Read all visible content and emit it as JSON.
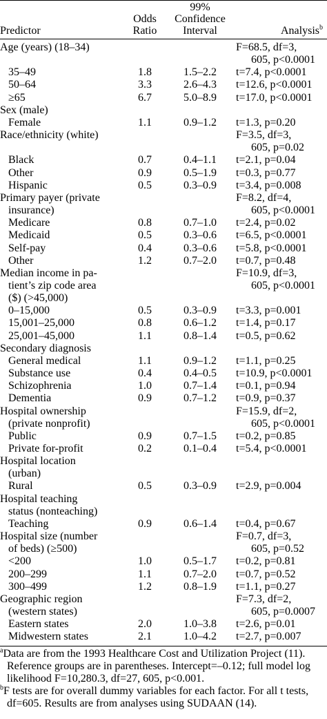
{
  "headers": {
    "predictor": "Predictor",
    "odds_ratio": [
      "Odds",
      "Ratio"
    ],
    "ci": [
      "99%",
      "Confidence",
      "Interval"
    ],
    "analysis": "Analysis",
    "analysis_sup": "b"
  },
  "rows": [
    {
      "pred": [
        "Age (years) (18–34)"
      ],
      "indent": false,
      "or": "",
      "ci": "",
      "an": [
        "F=68.5, df=3,",
        "605, p<0.0001"
      ]
    },
    {
      "pred": [
        "35–49"
      ],
      "indent": true,
      "or": "1.8",
      "ci": "1.5–2.2",
      "an": [
        "t=7.4, p<0.0001"
      ]
    },
    {
      "pred": [
        "50–64"
      ],
      "indent": true,
      "or": "3.3",
      "ci": "2.6–4.3",
      "an": [
        "t=12.6, p<0.0001"
      ]
    },
    {
      "pred": [
        "≥65"
      ],
      "indent": true,
      "or": "6.7",
      "ci": "5.0–8.9",
      "an": [
        "t=17.0, p<0.0001"
      ]
    },
    {
      "pred": [
        "Sex (male)"
      ],
      "indent": false,
      "or": "",
      "ci": "",
      "an": [
        ""
      ]
    },
    {
      "pred": [
        "Female"
      ],
      "indent": true,
      "or": "1.1",
      "ci": "0.9–1.2",
      "an": [
        "t=1.3, p=0.20"
      ]
    },
    {
      "pred": [
        "Race/ethnicity (white)"
      ],
      "indent": false,
      "or": "",
      "ci": "",
      "an": [
        "F=3.5, df=3,",
        "605, p=0.02"
      ]
    },
    {
      "pred": [
        "Black"
      ],
      "indent": true,
      "or": "0.7",
      "ci": "0.4–1.1",
      "an": [
        "t=2.1, p=0.04"
      ]
    },
    {
      "pred": [
        "Other"
      ],
      "indent": true,
      "or": "0.9",
      "ci": "0.5–1.9",
      "an": [
        "t=0.3, p=0.77"
      ]
    },
    {
      "pred": [
        "Hispanic"
      ],
      "indent": true,
      "or": "0.5",
      "ci": "0.3–0.9",
      "an": [
        "t=3.4, p=0.008"
      ]
    },
    {
      "pred": [
        "Primary payer (private",
        "insurance)"
      ],
      "indent": false,
      "or": "",
      "ci": "",
      "an": [
        "F=8.2, df=4,",
        "605, p<0.0001"
      ]
    },
    {
      "pred": [
        "Medicare"
      ],
      "indent": true,
      "or": "0.8",
      "ci": "0.7–1.0",
      "an": [
        "t=2.4, p=0.02"
      ]
    },
    {
      "pred": [
        "Medicaid"
      ],
      "indent": true,
      "or": "0.5",
      "ci": "0.3–0.6",
      "an": [
        "t=6.5, p<0.0001"
      ]
    },
    {
      "pred": [
        "Self-pay"
      ],
      "indent": true,
      "or": "0.4",
      "ci": "0.3–0.6",
      "an": [
        "t=5.8, p<0.0001"
      ]
    },
    {
      "pred": [
        "Other"
      ],
      "indent": true,
      "or": "1.2",
      "ci": "0.7–2.0",
      "an": [
        "t=0.7, p=0.48"
      ]
    },
    {
      "pred": [
        "Median income in pa-",
        "tient’s zip code area",
        "($) (>45,000)"
      ],
      "indent": false,
      "or": "",
      "ci": "",
      "an": [
        "F=10.9, df=3,",
        "605, p<0.0001"
      ]
    },
    {
      "pred": [
        "0–15,000"
      ],
      "indent": true,
      "or": "0.5",
      "ci": "0.3–0.9",
      "an": [
        "t=3.3, p=0.001"
      ]
    },
    {
      "pred": [
        "15,001–25,000"
      ],
      "indent": true,
      "or": "0.8",
      "ci": "0.6–1.2",
      "an": [
        "t=1.4, p=0.17"
      ]
    },
    {
      "pred": [
        "25,001–45,000"
      ],
      "indent": true,
      "or": "1.1",
      "ci": "0.8–1.4",
      "an": [
        "t=0.5, p=0.62"
      ]
    },
    {
      "pred": [
        "Secondary diagnosis"
      ],
      "indent": false,
      "or": "",
      "ci": "",
      "an": [
        ""
      ]
    },
    {
      "pred": [
        "General medical"
      ],
      "indent": true,
      "or": "1.1",
      "ci": "0.9–1.2",
      "an": [
        "t=1.1, p=0.25"
      ]
    },
    {
      "pred": [
        "Substance use"
      ],
      "indent": true,
      "or": "0.4",
      "ci": "0.4–0.5",
      "an": [
        "t=10.9, p<0.0001"
      ]
    },
    {
      "pred": [
        "Schizophrenia"
      ],
      "indent": true,
      "or": "1.0",
      "ci": "0.7–1.4",
      "an": [
        "t=0.1, p=0.94"
      ]
    },
    {
      "pred": [
        "Dementia"
      ],
      "indent": true,
      "or": "0.9",
      "ci": "0.7–1.2",
      "an": [
        "t=0.9, p=0.37"
      ]
    },
    {
      "pred": [
        "Hospital ownership",
        "(private nonprofit)"
      ],
      "indent": false,
      "or": "",
      "ci": "",
      "an": [
        "F=15.9, df=2,",
        "605, p<0.0001"
      ]
    },
    {
      "pred": [
        "Public"
      ],
      "indent": true,
      "or": "0.9",
      "ci": "0.7–1.5",
      "an": [
        "t=0.2, p=0.85"
      ]
    },
    {
      "pred": [
        "Private for-profit"
      ],
      "indent": true,
      "or": "0.2",
      "ci": "0.1–0.4",
      "an": [
        "t=5.4, p<0.0001"
      ]
    },
    {
      "pred": [
        "Hospital location",
        "(urban)"
      ],
      "indent": false,
      "or": "",
      "ci": "",
      "an": [
        ""
      ]
    },
    {
      "pred": [
        "Rural"
      ],
      "indent": true,
      "or": "0.5",
      "ci": "0.3–0.9",
      "an": [
        "t=2.9, p=0.004"
      ]
    },
    {
      "pred": [
        "Hospital teaching",
        "status (nonteaching)"
      ],
      "indent": false,
      "or": "",
      "ci": "",
      "an": [
        ""
      ]
    },
    {
      "pred": [
        "Teaching"
      ],
      "indent": true,
      "or": "0.9",
      "ci": "0.6–1.4",
      "an": [
        "t=0.4, p=0.67"
      ]
    },
    {
      "pred": [
        "Hospital size (number",
        "of beds) (≥500)"
      ],
      "indent": false,
      "or": "",
      "ci": "",
      "an": [
        "F=0.7, df=3,",
        "605, p=0.52"
      ]
    },
    {
      "pred": [
        "<200"
      ],
      "indent": true,
      "or": "1.0",
      "ci": "0.5–1.7",
      "an": [
        "t=0.2, p=0.81"
      ]
    },
    {
      "pred": [
        "200–299"
      ],
      "indent": true,
      "or": "1.1",
      "ci": "0.7–2.0",
      "an": [
        "t=0.7, p=0.52"
      ]
    },
    {
      "pred": [
        "300–499"
      ],
      "indent": true,
      "or": "1.2",
      "ci": "0.8–1.9",
      "an": [
        "t=1.1, p=0.27"
      ]
    },
    {
      "pred": [
        "Geographic region",
        "(western states)"
      ],
      "indent": false,
      "or": "",
      "ci": "",
      "an": [
        "F=7.3, df=2,",
        "605, p=0.0007"
      ]
    },
    {
      "pred": [
        "Eastern states"
      ],
      "indent": true,
      "or": "2.0",
      "ci": "1.0–3.8",
      "an": [
        "t=2.6, p=0.01"
      ]
    },
    {
      "pred": [
        "Midwestern states"
      ],
      "indent": true,
      "or": "2.1",
      "ci": "1.0–4.2",
      "an": [
        "t=2.7, p=0.007"
      ]
    }
  ],
  "footnotes": [
    {
      "mark": "a",
      "lines": [
        "Data are from the 1993 Healthcare Cost and Utilization Project (11).",
        "Reference groups are in parentheses. Intercept=–0.12; full model log",
        "likelihood F=10,280.3, df=27, 605, p<0.001."
      ]
    },
    {
      "mark": "b",
      "lines": [
        "F tests are for overall dummy variables for each factor. For all t tests,",
        "df=605. Results are from analyses using SUDAAN (14)."
      ]
    }
  ]
}
